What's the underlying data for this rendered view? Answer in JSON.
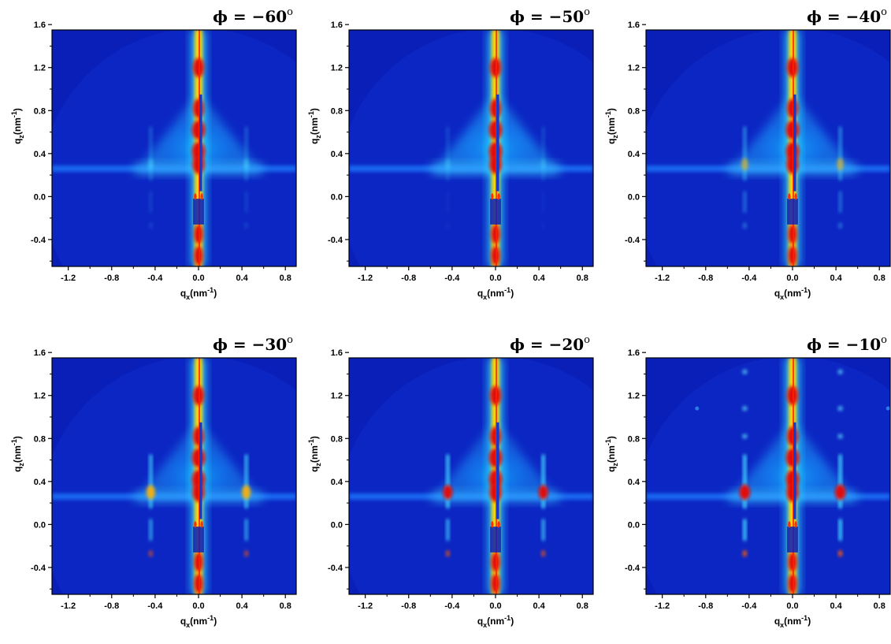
{
  "chart_data": [
    {
      "type": "heatmap",
      "title": "ϕ = −60°",
      "title_symbol": "ϕ",
      "title_value": " = −60",
      "title_unit": "o",
      "xlabel_base": "q",
      "xlabel_sub": "x",
      "xlabel_unit": "(nm",
      "xlabel_exp": "-1",
      "xlabel_close": ")",
      "ylabel_base": "q",
      "ylabel_sub": "z",
      "ylabel_unit": "(nm",
      "ylabel_exp": "-1",
      "ylabel_close": ")",
      "xlim": [
        -1.35,
        0.9
      ],
      "ylim": [
        -0.65,
        1.55
      ],
      "x_ticks": [
        "-1.2",
        "-0.8",
        "-0.4",
        "0.0",
        "0.4",
        "0.8"
      ],
      "y_ticks": [
        "-0.4",
        "0.0",
        "0.4",
        "0.8",
        "1.2",
        "1.6"
      ],
      "side_peak_intensity": 0.15,
      "wing_intensity": 0.45,
      "colormap": "jet"
    },
    {
      "type": "heatmap",
      "title": "ϕ = −50°",
      "title_symbol": "ϕ",
      "title_value": " = −50",
      "title_unit": "o",
      "xlabel_base": "q",
      "xlabel_sub": "x",
      "xlabel_unit": "(nm",
      "xlabel_exp": "-1",
      "xlabel_close": ")",
      "ylabel_base": "q",
      "ylabel_sub": "z",
      "ylabel_unit": "(nm",
      "ylabel_exp": "-1",
      "ylabel_close": ")",
      "xlim": [
        -1.35,
        0.9
      ],
      "ylim": [
        -0.65,
        1.55
      ],
      "x_ticks": [
        "-1.2",
        "-0.8",
        "-0.4",
        "0.0",
        "0.4",
        "0.8"
      ],
      "y_ticks": [
        "-0.4",
        "0.0",
        "0.4",
        "0.8",
        "1.2",
        "1.6"
      ],
      "side_peak_intensity": 0.05,
      "wing_intensity": 0.5,
      "colormap": "jet"
    },
    {
      "type": "heatmap",
      "title": "ϕ = −40°",
      "title_symbol": "ϕ",
      "title_value": " = −40",
      "title_unit": "o",
      "xlabel_base": "q",
      "xlabel_sub": "x",
      "xlabel_unit": "(nm",
      "xlabel_exp": "-1",
      "xlabel_close": ")",
      "ylabel_base": "q",
      "ylabel_sub": "z",
      "ylabel_unit": "(nm",
      "ylabel_exp": "-1",
      "ylabel_close": ")",
      "xlim": [
        -1.35,
        0.9
      ],
      "ylim": [
        -0.65,
        1.55
      ],
      "x_ticks": [
        "-1.2",
        "-0.8",
        "-0.4",
        "0.0",
        "0.4",
        "0.8"
      ],
      "y_ticks": [
        "-0.4",
        "0.0",
        "0.4",
        "0.8",
        "1.2",
        "1.6"
      ],
      "side_peak_intensity": 0.4,
      "wing_intensity": 0.45,
      "colormap": "jet"
    },
    {
      "type": "heatmap",
      "title": "ϕ = −30°",
      "title_symbol": "ϕ",
      "title_value": " = −30",
      "title_unit": "o",
      "xlabel_base": "q",
      "xlabel_sub": "x",
      "xlabel_unit": "(nm",
      "xlabel_exp": "-1",
      "xlabel_close": ")",
      "ylabel_base": "q",
      "ylabel_sub": "z",
      "ylabel_unit": "(nm",
      "ylabel_exp": "-1",
      "ylabel_close": ")",
      "xlim": [
        -1.35,
        0.9
      ],
      "ylim": [
        -0.65,
        1.55
      ],
      "x_ticks": [
        "-1.2",
        "-0.8",
        "-0.4",
        "0.0",
        "0.4",
        "0.8"
      ],
      "y_ticks": [
        "-0.4",
        "0.0",
        "0.4",
        "0.8",
        "1.2",
        "1.6"
      ],
      "side_peak_intensity": 0.7,
      "wing_intensity": 0.4,
      "colormap": "jet"
    },
    {
      "type": "heatmap",
      "title": "ϕ = −20°",
      "title_symbol": "ϕ",
      "title_value": " = −20",
      "title_unit": "o",
      "xlabel_base": "q",
      "xlabel_sub": "x",
      "xlabel_unit": "(nm",
      "xlabel_exp": "-1",
      "xlabel_close": ")",
      "ylabel_base": "q",
      "ylabel_sub": "z",
      "ylabel_unit": "(nm",
      "ylabel_exp": "-1",
      "ylabel_close": ")",
      "xlim": [
        -1.35,
        0.9
      ],
      "ylim": [
        -0.65,
        1.55
      ],
      "x_ticks": [
        "-1.2",
        "-0.8",
        "-0.4",
        "0.0",
        "0.4",
        "0.8"
      ],
      "y_ticks": [
        "-0.4",
        "0.0",
        "0.4",
        "0.8",
        "1.2",
        "1.6"
      ],
      "side_peak_intensity": 0.8,
      "wing_intensity": 0.4,
      "colormap": "jet"
    },
    {
      "type": "heatmap",
      "title": "ϕ = −10°",
      "title_symbol": "ϕ",
      "title_value": " = −10",
      "title_unit": "o",
      "xlabel_base": "q",
      "xlabel_sub": "x",
      "xlabel_unit": "(nm",
      "xlabel_exp": "-1",
      "xlabel_close": ")",
      "ylabel_base": "q",
      "ylabel_sub": "z",
      "ylabel_unit": "(nm",
      "ylabel_exp": "-1",
      "ylabel_close": ")",
      "xlim": [
        -1.35,
        0.9
      ],
      "ylim": [
        -0.65,
        1.55
      ],
      "x_ticks": [
        "-1.2",
        "-0.8",
        "-0.4",
        "0.0",
        "0.4",
        "0.8"
      ],
      "y_ticks": [
        "-0.4",
        "0.0",
        "0.4",
        "0.8",
        "1.2",
        "1.6"
      ],
      "side_peak_intensity": 1.0,
      "wing_intensity": 0.45,
      "colormap": "jet"
    }
  ]
}
